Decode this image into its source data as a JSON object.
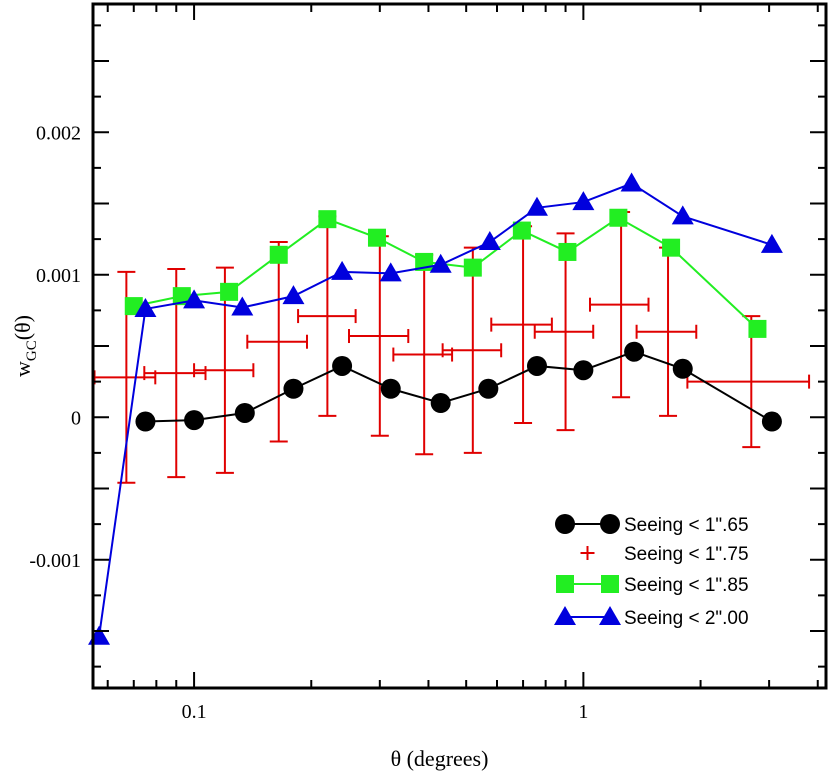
{
  "chart_data": {
    "type": "scatter",
    "title": "",
    "xlabel": "θ (degrees)",
    "ylabel_main": "w",
    "ylabel_sub": "GC",
    "ylabel_tail": "(θ)",
    "xscale": "log",
    "xlim": [
      0.055,
      4.2
    ],
    "ylim": [
      -0.0019,
      0.0029
    ],
    "x_ticks": [
      {
        "value": 0.1,
        "label": "0.1"
      },
      {
        "value": 1,
        "label": "1"
      }
    ],
    "y_ticks": [
      {
        "value": -0.001,
        "label": "-0.001"
      },
      {
        "value": 0,
        "label": "0"
      },
      {
        "value": 0.001,
        "label": "0.001"
      },
      {
        "value": 0.002,
        "label": "0.002"
      }
    ],
    "legend_position": "bottom-right",
    "series": [
      {
        "name": "Seeing < 1\".65",
        "color": "#000000",
        "marker": "circle",
        "line": true,
        "x": [
          0.075,
          0.1,
          0.135,
          0.18,
          0.24,
          0.32,
          0.43,
          0.57,
          0.76,
          1.0,
          1.35,
          1.8,
          3.05
        ],
        "y": [
          -3e-05,
          -2e-05,
          3e-05,
          0.0002,
          0.00036,
          0.0002,
          0.0001,
          0.0002,
          0.00036,
          0.00033,
          0.00046,
          0.00034,
          -3e-05
        ]
      },
      {
        "name": "Seeing < 1\".75",
        "color": "#e00000",
        "marker": "errorbar",
        "line": false,
        "x": [
          0.067,
          0.09,
          0.12,
          0.165,
          0.22,
          0.3,
          0.39,
          0.52,
          0.7,
          0.9,
          1.25,
          1.65,
          2.7
        ],
        "y": [
          0.00028,
          0.00031,
          0.00033,
          0.00053,
          0.00071,
          0.00057,
          0.00044,
          0.00047,
          0.00065,
          0.0006,
          0.00079,
          0.0006,
          0.00025
        ],
        "y_err": [
          0.00074,
          0.00073,
          0.00072,
          0.0007,
          0.0007,
          0.0007,
          0.0007,
          0.00072,
          0.00069,
          0.00069,
          0.00065,
          0.00059,
          0.00046
        ],
        "x_lo": [
          0.0555,
          0.0745,
          0.1,
          0.137,
          0.185,
          0.25,
          0.325,
          0.435,
          0.58,
          0.75,
          1.04,
          1.37,
          1.85
        ],
        "x_hi": [
          0.0795,
          0.107,
          0.142,
          0.195,
          0.26,
          0.355,
          0.46,
          0.615,
          0.83,
          1.06,
          1.47,
          1.95,
          3.8
        ]
      },
      {
        "name": "Seeing < 1\".85",
        "color": "#22ee22",
        "marker": "square",
        "line": true,
        "x": [
          0.07,
          0.093,
          0.123,
          0.165,
          0.22,
          0.295,
          0.39,
          0.52,
          0.695,
          0.91,
          1.23,
          1.68,
          2.8
        ],
        "y": [
          0.00078,
          0.00085,
          0.00088,
          0.00114,
          0.00139,
          0.00126,
          0.00109,
          0.00105,
          0.00131,
          0.00116,
          0.0014,
          0.00119,
          0.00062
        ]
      },
      {
        "name": "Seeing < 2\".00",
        "color": "#0000dd",
        "marker": "triangle",
        "line": true,
        "x": [
          0.057,
          0.075,
          0.1,
          0.133,
          0.18,
          0.24,
          0.32,
          0.43,
          0.575,
          0.76,
          1.0,
          1.33,
          1.8,
          3.05
        ],
        "y": [
          -0.00154,
          0.00076,
          0.00082,
          0.00077,
          0.00085,
          0.00102,
          0.00101,
          0.00107,
          0.00123,
          0.00147,
          0.00151,
          0.00164,
          0.00141,
          0.00121
        ]
      }
    ]
  }
}
